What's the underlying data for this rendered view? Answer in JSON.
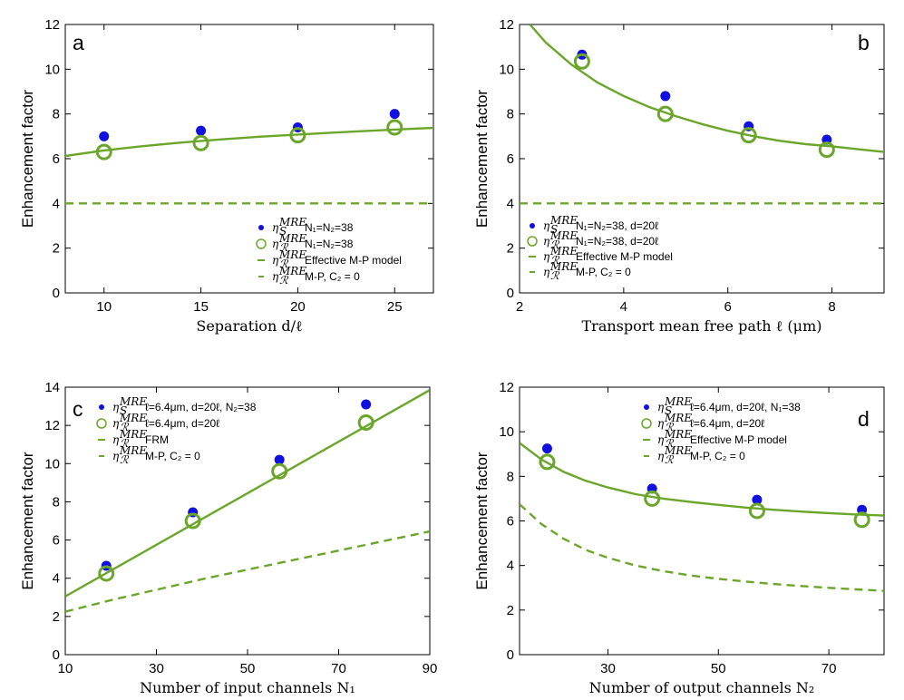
{
  "colors": {
    "blue": "#1010e0",
    "green": "#6aa62a"
  },
  "chart_data": [
    {
      "type": "scatter",
      "panel": "a",
      "xlabel": "Separation d/ℓ",
      "ylabel": "Enhancement factor",
      "xlim": [
        8,
        27
      ],
      "ylim": [
        0,
        12
      ],
      "xticks": [
        10,
        15,
        20,
        25
      ],
      "yticks": [
        0,
        2,
        4,
        6,
        8,
        10,
        12
      ],
      "series": [
        {
          "name": "η_S^MRE",
          "kind": "dots",
          "x": [
            10,
            15,
            20,
            25
          ],
          "y": [
            7.0,
            7.25,
            7.4,
            8.0
          ]
        },
        {
          "name": "η_R^MRE",
          "kind": "circles",
          "x": [
            10,
            15,
            20,
            25
          ],
          "y": [
            6.3,
            6.7,
            7.05,
            7.4
          ]
        },
        {
          "name": "η_R^MRE model",
          "kind": "line",
          "x": [
            8,
            10,
            12,
            14,
            16,
            18,
            20,
            22,
            24,
            26,
            27
          ],
          "y": [
            6.12,
            6.37,
            6.56,
            6.72,
            6.86,
            6.98,
            7.08,
            7.17,
            7.26,
            7.34,
            7.38
          ]
        },
        {
          "name": "η_R^MRE M-P",
          "kind": "dashed",
          "x": [
            8,
            27
          ],
          "y": [
            4.0,
            4.0
          ]
        }
      ],
      "legend": [
        {
          "sym": "η",
          "sub": "S",
          "sup": "MRE",
          "label": "N₁=N₂=38",
          "kind": "dots"
        },
        {
          "sym": "η",
          "sub": "ℛ",
          "sup": "MRE",
          "label": "N₁=N₂=38",
          "kind": "circles"
        },
        {
          "sym": "η",
          "sub": "ℛ",
          "sup": "MRE",
          "label": "Effective M-P model",
          "kind": "line"
        },
        {
          "sym": "η",
          "sub": "ℛ",
          "sup": "MRE",
          "label": "M-P, C₂ = 0",
          "kind": "dashed"
        }
      ],
      "legend_position": "bottom-right"
    },
    {
      "type": "scatter",
      "panel": "b",
      "xlabel": "Transport mean free path ℓ (μm)",
      "ylabel": "Enhancement factor",
      "xlim": [
        2,
        9
      ],
      "ylim": [
        0,
        12
      ],
      "xticks": [
        2,
        4,
        6,
        8
      ],
      "yticks": [
        0,
        2,
        4,
        6,
        8,
        10,
        12
      ],
      "series": [
        {
          "name": "η_S^MRE",
          "kind": "dots",
          "x": [
            3.2,
            4.8,
            6.4,
            7.9
          ],
          "y": [
            10.65,
            8.8,
            7.45,
            6.85
          ]
        },
        {
          "name": "η_R^MRE",
          "kind": "circles",
          "x": [
            3.2,
            4.8,
            6.4,
            7.9
          ],
          "y": [
            10.35,
            8.0,
            7.05,
            6.4
          ]
        },
        {
          "name": "η_R^MRE model",
          "kind": "line",
          "x": [
            2.2,
            2.5,
            3.0,
            3.5,
            4.0,
            4.5,
            5.0,
            5.5,
            6.0,
            6.5,
            7.0,
            7.5,
            8.0,
            8.5,
            9.0
          ],
          "y": [
            12.0,
            11.2,
            10.2,
            9.4,
            8.8,
            8.3,
            7.9,
            7.55,
            7.25,
            7.0,
            6.8,
            6.65,
            6.55,
            6.42,
            6.3
          ]
        },
        {
          "name": "η_R^MRE M-P",
          "kind": "dashed",
          "x": [
            2,
            9
          ],
          "y": [
            4.0,
            4.0
          ]
        }
      ],
      "legend": [
        {
          "sym": "η",
          "sub": "S",
          "sup": "MRE",
          "label": "N₁=N₂=38, d=20ℓ",
          "kind": "dots"
        },
        {
          "sym": "η",
          "sub": "ℛ",
          "sup": "MRE",
          "label": "N₁=N₂=38, d=20ℓ",
          "kind": "circles"
        },
        {
          "sym": "η",
          "sub": "ℛ",
          "sup": "MRE",
          "label": "Effective M-P model",
          "kind": "line"
        },
        {
          "sym": "η",
          "sub": "ℛ",
          "sup": "MRE",
          "label": "M-P, C₂ = 0",
          "kind": "dashed"
        }
      ],
      "legend_position": "bottom-left"
    },
    {
      "type": "scatter",
      "panel": "c",
      "xlabel": "Number of input channels N₁",
      "ylabel": "Enhancement factor",
      "xlim": [
        10,
        90
      ],
      "ylim": [
        0,
        14
      ],
      "xticks": [
        10,
        30,
        50,
        70,
        90
      ],
      "yticks": [
        0,
        2,
        4,
        6,
        8,
        10,
        12,
        14
      ],
      "series": [
        {
          "name": "η_S^MRE",
          "kind": "dots",
          "x": [
            19,
            38,
            57,
            76
          ],
          "y": [
            4.65,
            7.45,
            10.2,
            13.1
          ]
        },
        {
          "name": "η_R^MRE",
          "kind": "circles",
          "x": [
            19,
            38,
            57,
            76
          ],
          "y": [
            4.25,
            7.0,
            9.6,
            12.15
          ]
        },
        {
          "name": "η_R^MRE FRM",
          "kind": "line",
          "x": [
            10,
            90
          ],
          "y": [
            3.05,
            13.85
          ]
        },
        {
          "name": "η_R^MRE M-P",
          "kind": "dashed",
          "x": [
            10,
            20,
            30,
            40,
            50,
            60,
            70,
            80,
            90
          ],
          "y": [
            2.25,
            2.85,
            3.4,
            3.95,
            4.45,
            4.95,
            5.45,
            5.95,
            6.45
          ]
        }
      ],
      "legend": [
        {
          "sym": "η",
          "sub": "S",
          "sup": "MRE",
          "label": "ℓ=6.4μm, d=20ℓ, N₂=38",
          "kind": "dots"
        },
        {
          "sym": "η",
          "sub": "ℛ",
          "sup": "MRE",
          "label": "ℓ=6.4μm, d=20ℓ",
          "kind": "circles"
        },
        {
          "sym": "η",
          "sub": "ℛ",
          "sup": "MRE",
          "label": "FRM",
          "kind": "line"
        },
        {
          "sym": "η",
          "sub": "ℛ",
          "sup": "MRE",
          "label": "M-P, C₂ = 0",
          "kind": "dashed"
        }
      ],
      "legend_position": "top-left"
    },
    {
      "type": "scatter",
      "panel": "d",
      "xlabel": "Number of output channels N₂",
      "ylabel": "Enhancement factor",
      "xlim": [
        14,
        80
      ],
      "ylim": [
        0,
        12
      ],
      "xticks": [
        30,
        50,
        70
      ],
      "yticks": [
        0,
        2,
        4,
        6,
        8,
        10,
        12
      ],
      "series": [
        {
          "name": "η_S^MRE",
          "kind": "dots",
          "x": [
            19,
            38,
            57,
            76
          ],
          "y": [
            9.25,
            7.45,
            6.95,
            6.5
          ]
        },
        {
          "name": "η_R^MRE",
          "kind": "circles",
          "x": [
            19,
            38,
            57,
            76
          ],
          "y": [
            8.65,
            7.0,
            6.45,
            6.05
          ]
        },
        {
          "name": "η_R^MRE model",
          "kind": "line",
          "x": [
            14,
            18,
            22,
            26,
            30,
            35,
            40,
            45,
            50,
            55,
            60,
            65,
            70,
            75,
            80
          ],
          "y": [
            9.5,
            8.75,
            8.2,
            7.8,
            7.5,
            7.2,
            7.0,
            6.85,
            6.72,
            6.6,
            6.5,
            6.42,
            6.35,
            6.29,
            6.24
          ]
        },
        {
          "name": "η_R^MRE M-P",
          "kind": "dashed",
          "x": [
            14,
            18,
            22,
            26,
            30,
            35,
            40,
            45,
            50,
            55,
            60,
            65,
            70,
            75,
            80
          ],
          "y": [
            6.75,
            5.85,
            5.2,
            4.7,
            4.35,
            4.0,
            3.75,
            3.55,
            3.4,
            3.28,
            3.17,
            3.08,
            3.0,
            2.93,
            2.86
          ]
        }
      ],
      "legend": [
        {
          "sym": "η",
          "sub": "S",
          "sup": "MRE",
          "label": "ℓ=6.4μm, d=20ℓ, N₁=38",
          "kind": "dots"
        },
        {
          "sym": "η",
          "sub": "ℛ",
          "sup": "MRE",
          "label": "ℓ=6.4μm, d=20ℓ",
          "kind": "circles"
        },
        {
          "sym": "η",
          "sub": "ℛ",
          "sup": "MRE",
          "label": "Effective M-P model",
          "kind": "line"
        },
        {
          "sym": "η",
          "sub": "ℛ",
          "sup": "MRE",
          "label": "M-P, C₂ = 0",
          "kind": "dashed"
        }
      ],
      "legend_position": "top-right"
    }
  ]
}
